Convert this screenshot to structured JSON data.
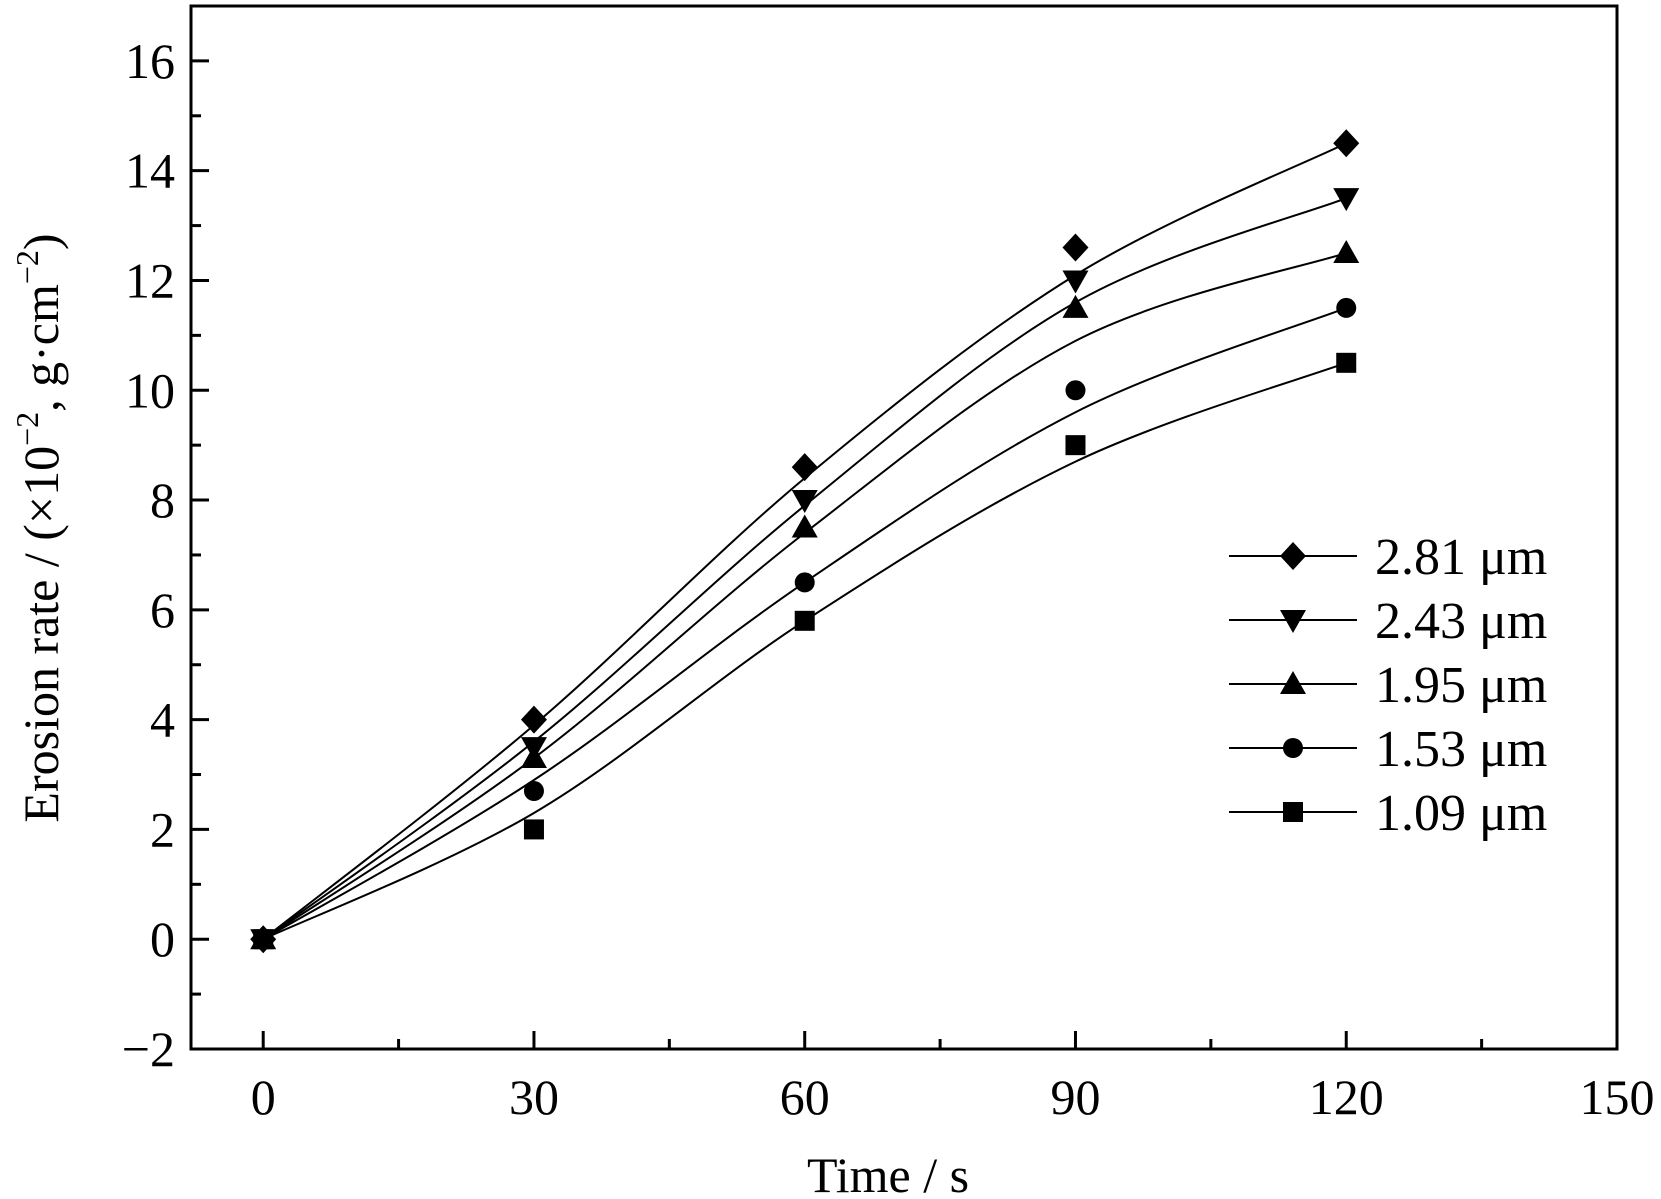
{
  "chart_data": {
    "type": "scatter",
    "xlabel": "Time / s",
    "ylabel": "Erosion rate / (×10",
    "ylabel_sup1": "−2",
    "ylabel_mid": ", g·cm",
    "ylabel_sup2": "−2",
    "ylabel_end": ")",
    "xlim": [
      -8,
      150
    ],
    "ylim": [
      -2,
      17
    ],
    "xticks": [
      0,
      30,
      60,
      90,
      120,
      150
    ],
    "yticks": [
      -2,
      0,
      2,
      4,
      6,
      8,
      10,
      12,
      14,
      16
    ],
    "xtick_labels": [
      "0",
      "30",
      "60",
      "90",
      "120",
      "150"
    ],
    "ytick_labels": [
      "−2",
      "0",
      "2",
      "4",
      "6",
      "8",
      "10",
      "12",
      "14",
      "16"
    ],
    "grid": false,
    "legend_position": "right",
    "x": [
      0,
      30,
      60,
      90,
      120
    ],
    "series": [
      {
        "name": "2.81 μm",
        "marker": "diamond",
        "values": [
          0,
          4.0,
          8.6,
          12.6,
          14.5
        ],
        "fit": [
          0,
          3.9,
          8.4,
          12.1,
          14.5
        ]
      },
      {
        "name": "2.43 μm",
        "marker": "triangle-down",
        "values": [
          0,
          3.5,
          8.0,
          12.0,
          13.5
        ],
        "fit": [
          0,
          3.6,
          7.9,
          11.6,
          13.5
        ]
      },
      {
        "name": "1.95 μm",
        "marker": "triangle-up",
        "values": [
          0,
          3.3,
          7.5,
          11.5,
          12.5
        ],
        "fit": [
          0,
          3.3,
          7.4,
          10.9,
          12.5
        ]
      },
      {
        "name": "1.53 μm",
        "marker": "circle",
        "values": [
          0,
          2.7,
          6.5,
          10.0,
          11.5
        ],
        "fit": [
          0,
          2.9,
          6.5,
          9.6,
          11.5
        ]
      },
      {
        "name": "1.09 μm",
        "marker": "square",
        "values": [
          0,
          2.0,
          5.8,
          9.0,
          10.5
        ],
        "fit": [
          0,
          2.3,
          5.8,
          8.7,
          10.5
        ]
      }
    ]
  }
}
